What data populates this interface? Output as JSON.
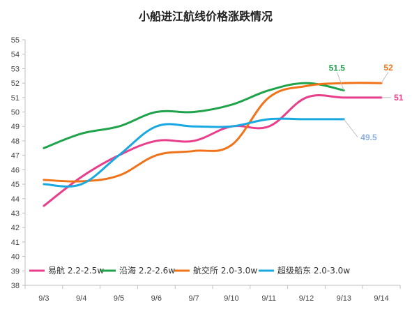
{
  "chart_data": {
    "type": "line",
    "title": "小船进江航线价格涨跌情况",
    "xlabel": "",
    "ylabel": "",
    "categories": [
      "9/3",
      "9/4",
      "9/5",
      "9/6",
      "9/7",
      "9/10",
      "9/11",
      "9/12",
      "9/13",
      "9/14"
    ],
    "ylim": [
      38,
      55
    ],
    "yticks": [
      38,
      39,
      40,
      41,
      42,
      43,
      44,
      45,
      46,
      47,
      48,
      49,
      50,
      51,
      52,
      53,
      54,
      55
    ],
    "grid": false,
    "legend_position": "bottom",
    "series": [
      {
        "name": "易航 2.2-2.5w",
        "color": "#e83e8c",
        "values": [
          43.5,
          45.5,
          47,
          48,
          48,
          49,
          49,
          51,
          51,
          51
        ],
        "end_label": "51"
      },
      {
        "name": "沿海 2.2-2.6w",
        "color": "#1fa34a",
        "values": [
          47.5,
          48.5,
          49,
          50,
          50,
          50.5,
          51.5,
          52,
          51.5,
          null
        ],
        "end_label": "51.5"
      },
      {
        "name": "航交所 2.0-3.0w",
        "color": "#f07319",
        "values": [
          45.3,
          45.2,
          45.6,
          47,
          47.3,
          47.7,
          51,
          51.8,
          52,
          52
        ],
        "end_label": "52"
      },
      {
        "name": "超级船东 2.0-3.0w",
        "color": "#19a9e0",
        "values": [
          45,
          45,
          47,
          49,
          49,
          49,
          49.5,
          49.5,
          49.5,
          null
        ],
        "end_label": "49.5"
      }
    ],
    "end_label_colors": [
      "#e83e8c",
      "#1fa34a",
      "#f07319",
      "#8aaee0"
    ]
  }
}
